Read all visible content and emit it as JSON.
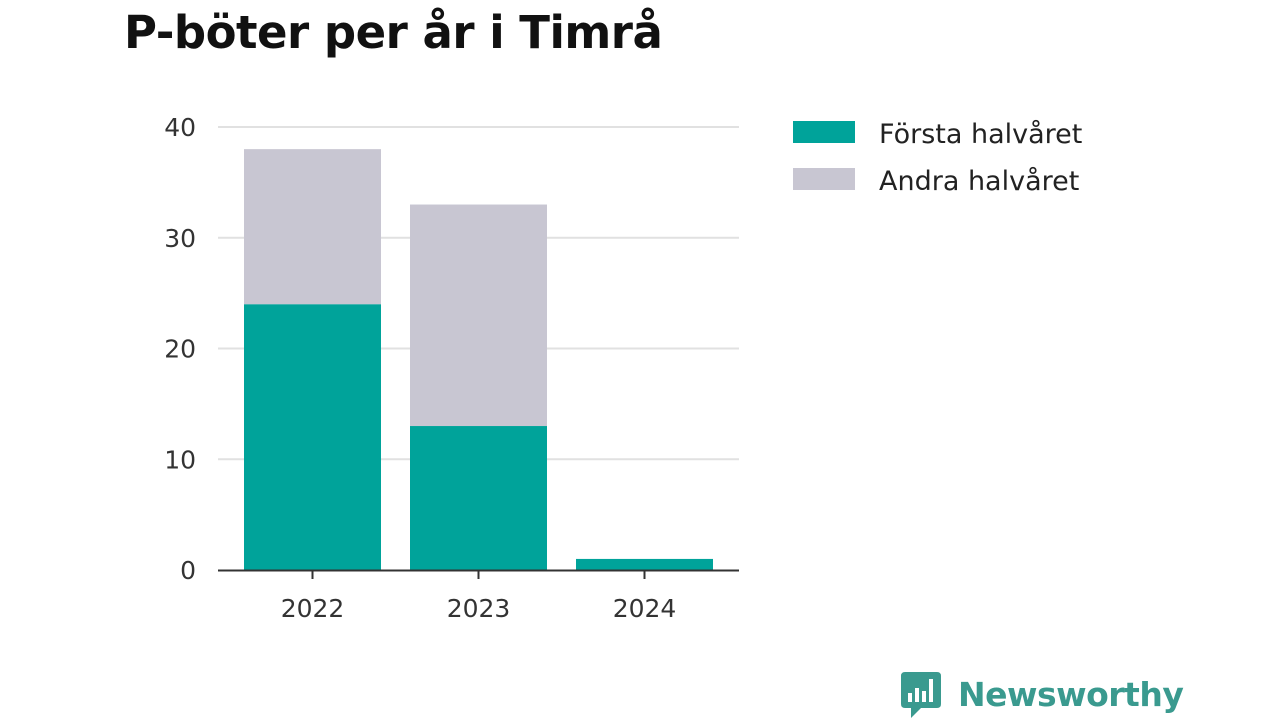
{
  "colors": {
    "series_first": "#00a39a",
    "series_second": "#c8c6d2",
    "grid": "#e1e1e1",
    "axis": "#333333",
    "brand": "#3a9a8f"
  },
  "chart_data": {
    "type": "bar",
    "stacked": true,
    "title": "P-böter per år i Timrå",
    "categories": [
      "2022",
      "2023",
      "2024"
    ],
    "series": [
      {
        "name": "Första halvåret",
        "values": [
          24,
          13,
          1
        ]
      },
      {
        "name": "Andra halvåret",
        "values": [
          14,
          20,
          0
        ]
      }
    ],
    "xlabel": "",
    "ylabel": "",
    "ylim": [
      0,
      40
    ],
    "yticks": [
      0,
      10,
      20,
      30,
      40
    ],
    "grid": true,
    "legend_position": "top-right"
  },
  "brand": {
    "name": "Newsworthy",
    "icon": "chart-bubble-icon"
  }
}
